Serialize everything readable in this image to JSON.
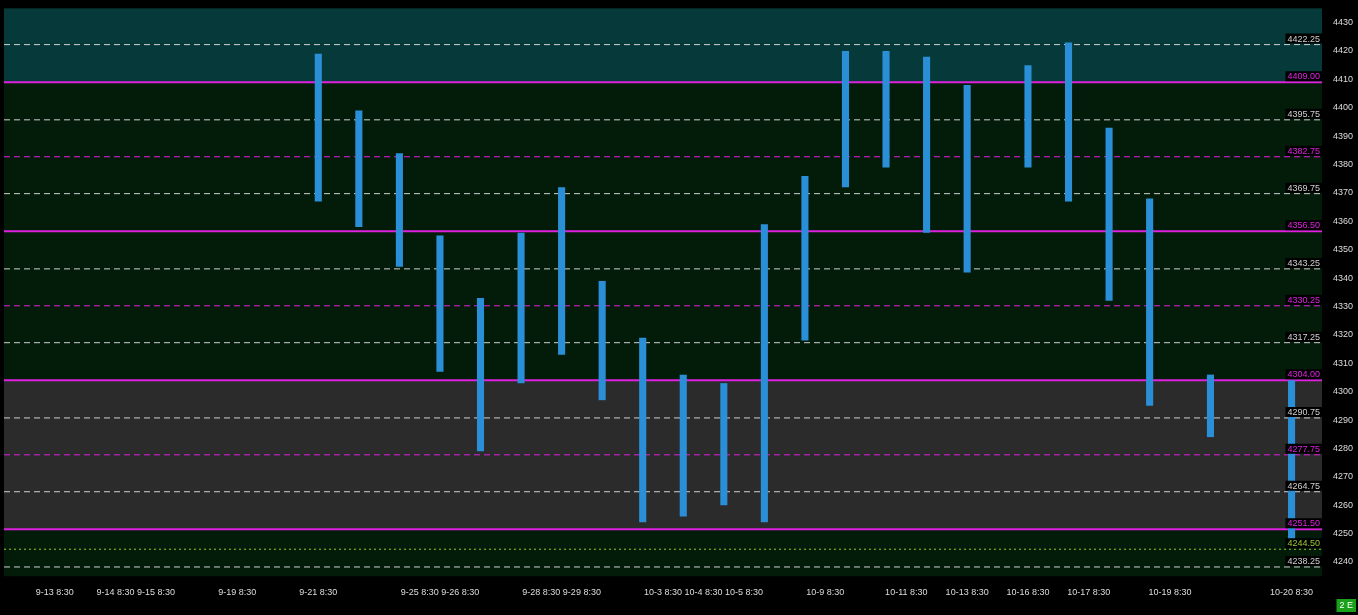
{
  "chart_data": {
    "type": "bar",
    "categories": [
      null,
      null,
      "9-13 8:30",
      null,
      null,
      "9-14 8:30",
      null,
      "9-15 8:30",
      null,
      null,
      null,
      "9-19 8:30",
      null,
      null,
      null,
      "9-21 8:30",
      null,
      null,
      null,
      null,
      "9-25 8:30",
      null,
      "9-26 8:30",
      null,
      null,
      null,
      "9-28 8:30",
      null,
      "9-29 8:30",
      null,
      null,
      null,
      "10-3 8:30",
      null,
      "10-4 8:30",
      null,
      "10-5 8:30",
      null,
      null,
      null,
      "10-9 8:30",
      null,
      null,
      null,
      "10-11 8:30",
      null,
      null,
      "10-13 8:30",
      null,
      null,
      "10-16 8:30",
      null,
      null,
      "10-17 8:30",
      null,
      null,
      null,
      "10-19 8:30",
      null,
      null,
      null,
      null,
      null,
      "10-20 8:30",
      null
    ],
    "base": [
      null,
      null,
      null,
      null,
      null,
      null,
      null,
      null,
      null,
      null,
      null,
      null,
      null,
      null,
      null,
      4367,
      null,
      4358,
      null,
      4344,
      null,
      4307,
      null,
      4279,
      null,
      4303,
      null,
      4313,
      null,
      4297,
      null,
      4254,
      null,
      4256,
      null,
      4260,
      null,
      4254,
      null,
      4318,
      null,
      4372,
      null,
      4379,
      null,
      4356,
      null,
      4342,
      null,
      null,
      4379,
      null,
      4367,
      null,
      4332,
      null,
      4295,
      null,
      null,
      4284,
      null,
      null,
      null,
      4247,
      null
    ],
    "values": [
      null,
      null,
      null,
      null,
      null,
      null,
      null,
      null,
      null,
      null,
      null,
      null,
      null,
      null,
      null,
      52,
      null,
      41,
      null,
      40,
      null,
      48,
      null,
      54,
      null,
      53,
      null,
      59,
      null,
      42,
      null,
      65,
      null,
      50,
      null,
      43,
      null,
      105,
      null,
      58,
      null,
      48,
      null,
      41,
      null,
      62,
      null,
      66,
      null,
      null,
      36,
      null,
      56,
      null,
      61,
      null,
      73,
      null,
      null,
      22,
      null,
      null,
      null,
      57,
      null
    ],
    "color": "#2a8fd6",
    "ylim": [
      4235,
      4435
    ],
    "yticks": [
      4240,
      4250,
      4260,
      4270,
      4280,
      4290,
      4300,
      4310,
      4320,
      4330,
      4340,
      4350,
      4360,
      4370,
      4380,
      4390,
      4400,
      4410,
      4420,
      4430
    ],
    "grid": false,
    "legend": false,
    "bands": [
      {
        "axis": "y",
        "from": 4409,
        "to": 4435,
        "color": "#063a3a"
      },
      {
        "axis": "y",
        "from": 4251.5,
        "to": 4304,
        "color": "#2b2b2b"
      }
    ],
    "ref_lines": [
      {
        "axis": "y",
        "value": 4422.25,
        "label": "4422.25",
        "color": "#d0d0d0",
        "line_style": "dashed"
      },
      {
        "axis": "y",
        "value": 4409,
        "label": "4409.00",
        "color": "#e020e0",
        "line_style": "solid"
      },
      {
        "axis": "y",
        "value": 4395.75,
        "label": "4395.75",
        "color": "#d0d0d0",
        "line_style": "dashed"
      },
      {
        "axis": "y",
        "value": 4382.75,
        "label": "4382.75",
        "color": "#e020e0",
        "line_style": "dashed"
      },
      {
        "axis": "y",
        "value": 4369.75,
        "label": "4369.75",
        "color": "#d0d0d0",
        "line_style": "dashed"
      },
      {
        "axis": "y",
        "value": 4356.5,
        "label": "4356.50",
        "color": "#e020e0",
        "line_style": "solid"
      },
      {
        "axis": "y",
        "value": 4343.25,
        "label": "4343.25",
        "color": "#d0d0d0",
        "line_style": "dashed"
      },
      {
        "axis": "y",
        "value": 4330.25,
        "label": "4330.25",
        "color": "#e020e0",
        "line_style": "dashed"
      },
      {
        "axis": "y",
        "value": 4317.25,
        "label": "4317.25",
        "color": "#d0d0d0",
        "line_style": "dashed"
      },
      {
        "axis": "y",
        "value": 4304,
        "label": "4304.00",
        "color": "#e020e0",
        "line_style": "solid"
      },
      {
        "axis": "y",
        "value": 4290.75,
        "label": "4290.75",
        "color": "#d0d0d0",
        "line_style": "dashed"
      },
      {
        "axis": "y",
        "value": 4277.75,
        "label": "4277.75",
        "color": "#e020e0",
        "line_style": "dashed"
      },
      {
        "axis": "y",
        "value": 4264.75,
        "label": "4264.75",
        "color": "#d0d0d0",
        "line_style": "dashed"
      },
      {
        "axis": "y",
        "value": 4251.5,
        "label": "4251.50",
        "color": "#e020e0",
        "line_style": "solid"
      },
      {
        "axis": "y",
        "value": 4244.5,
        "label": "4244.50",
        "color": "#9acd32",
        "line_style": "dotted"
      },
      {
        "axis": "y",
        "value": 4238.25,
        "label": "4238.25",
        "color": "#d0d0d0",
        "line_style": "dashed"
      }
    ],
    "annotations": [
      "2 E"
    ]
  }
}
